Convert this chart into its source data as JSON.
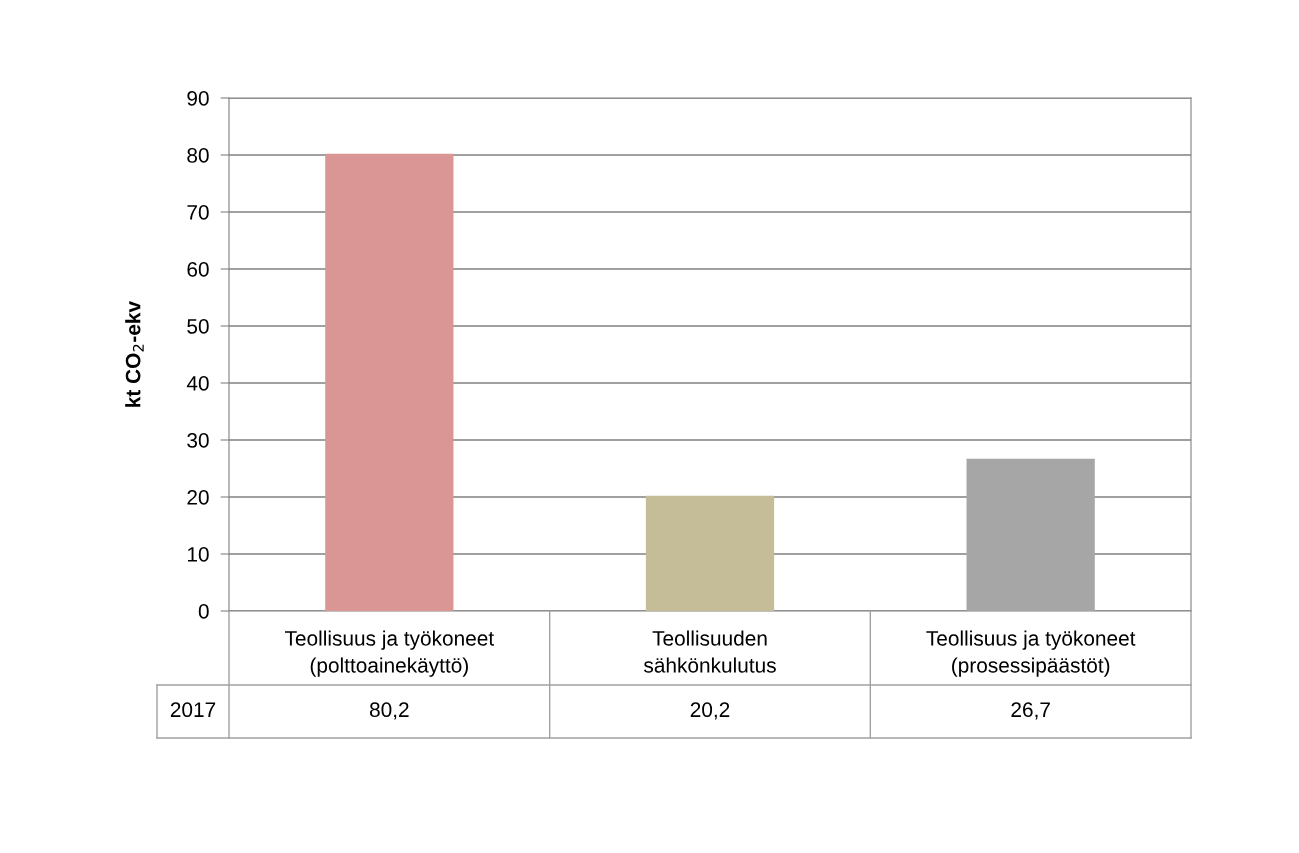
{
  "chart_data": {
    "type": "bar",
    "ylabel": "kt CO$_{2}$-ekv",
    "categories": [
      "Teollisuus ja työkoneet\n(polttoainekäyttö)",
      "Teollisuuden\nsähkönkulutus",
      "Teollisuus ja työkoneet\n(prosessipäästöt)"
    ],
    "series": [
      {
        "name": "2017",
        "values": [
          80.2,
          20.2,
          26.7
        ],
        "colors": [
          "#d99694",
          "#c4bd97",
          "#a6a6a6"
        ]
      }
    ],
    "value_labels": [
      "80,2",
      "20,2",
      "26,7"
    ],
    "ylim": [
      0,
      90
    ],
    "yticks": [
      0,
      10,
      20,
      30,
      40,
      50,
      60,
      70,
      80,
      90
    ],
    "grid": "y",
    "legend": "bottom"
  }
}
